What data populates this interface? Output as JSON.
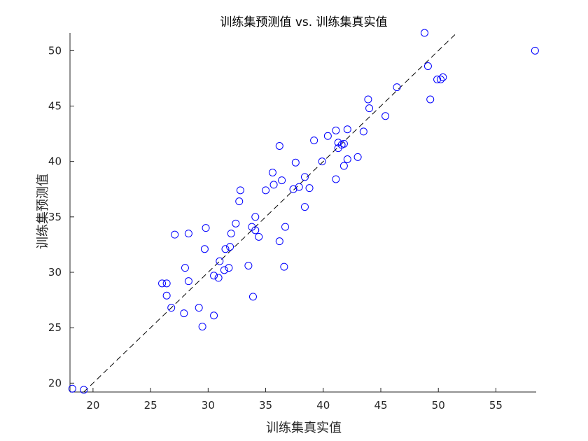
{
  "chart_data": {
    "type": "scatter",
    "title": "训练集预测值 vs. 训练集真实值",
    "xlabel": "训练集真实值",
    "ylabel": "训练集预测值",
    "xlim": [
      18,
      58.5
    ],
    "ylim": [
      19.2,
      51.6
    ],
    "xticks": [
      20,
      25,
      30,
      35,
      40,
      45,
      50,
      55
    ],
    "yticks": [
      20,
      25,
      30,
      35,
      40,
      45,
      50
    ],
    "grid": false,
    "legend": "none",
    "marker_color": "#0000ff",
    "reference_line": {
      "style": "dashed",
      "color": "#000000",
      "slope": 1,
      "intercept": 0
    },
    "points": [
      [
        18.2,
        19.5
      ],
      [
        19.2,
        19.4
      ],
      [
        26.0,
        29.0
      ],
      [
        26.4,
        29.0
      ],
      [
        26.4,
        27.9
      ],
      [
        26.8,
        26.8
      ],
      [
        27.1,
        33.4
      ],
      [
        27.9,
        26.3
      ],
      [
        28.0,
        30.4
      ],
      [
        28.3,
        33.5
      ],
      [
        28.3,
        29.2
      ],
      [
        29.2,
        26.8
      ],
      [
        29.5,
        25.1
      ],
      [
        29.7,
        32.1
      ],
      [
        29.8,
        34.0
      ],
      [
        30.5,
        29.7
      ],
      [
        30.5,
        26.1
      ],
      [
        30.9,
        29.5
      ],
      [
        31.0,
        31.0
      ],
      [
        31.4,
        30.2
      ],
      [
        31.5,
        32.1
      ],
      [
        31.8,
        30.4
      ],
      [
        31.9,
        32.3
      ],
      [
        32.0,
        33.5
      ],
      [
        32.4,
        34.4
      ],
      [
        32.7,
        36.4
      ],
      [
        32.8,
        37.4
      ],
      [
        33.5,
        30.6
      ],
      [
        33.8,
        34.1
      ],
      [
        33.9,
        27.8
      ],
      [
        34.1,
        33.8
      ],
      [
        34.1,
        35.0
      ],
      [
        34.4,
        33.2
      ],
      [
        35.0,
        37.4
      ],
      [
        35.6,
        39.0
      ],
      [
        35.7,
        37.9
      ],
      [
        36.2,
        32.8
      ],
      [
        36.2,
        41.4
      ],
      [
        36.4,
        38.3
      ],
      [
        36.6,
        30.5
      ],
      [
        36.7,
        34.1
      ],
      [
        37.4,
        37.5
      ],
      [
        37.6,
        39.9
      ],
      [
        37.9,
        37.7
      ],
      [
        38.4,
        38.6
      ],
      [
        38.4,
        35.9
      ],
      [
        38.8,
        37.6
      ],
      [
        39.2,
        41.9
      ],
      [
        39.9,
        40.0
      ],
      [
        40.4,
        42.3
      ],
      [
        41.1,
        42.8
      ],
      [
        41.1,
        38.4
      ],
      [
        41.3,
        41.7
      ],
      [
        41.3,
        41.2
      ],
      [
        41.6,
        41.5
      ],
      [
        41.8,
        41.6
      ],
      [
        41.8,
        39.6
      ],
      [
        42.1,
        42.9
      ],
      [
        42.1,
        40.2
      ],
      [
        43.0,
        40.4
      ],
      [
        43.5,
        42.7
      ],
      [
        43.9,
        45.6
      ],
      [
        44.0,
        44.8
      ],
      [
        45.4,
        44.1
      ],
      [
        46.4,
        46.7
      ],
      [
        48.8,
        51.6
      ],
      [
        49.1,
        48.6
      ],
      [
        49.3,
        45.6
      ],
      [
        49.9,
        47.4
      ],
      [
        50.2,
        47.4
      ],
      [
        50.4,
        47.6
      ],
      [
        58.4,
        50.0
      ]
    ]
  }
}
